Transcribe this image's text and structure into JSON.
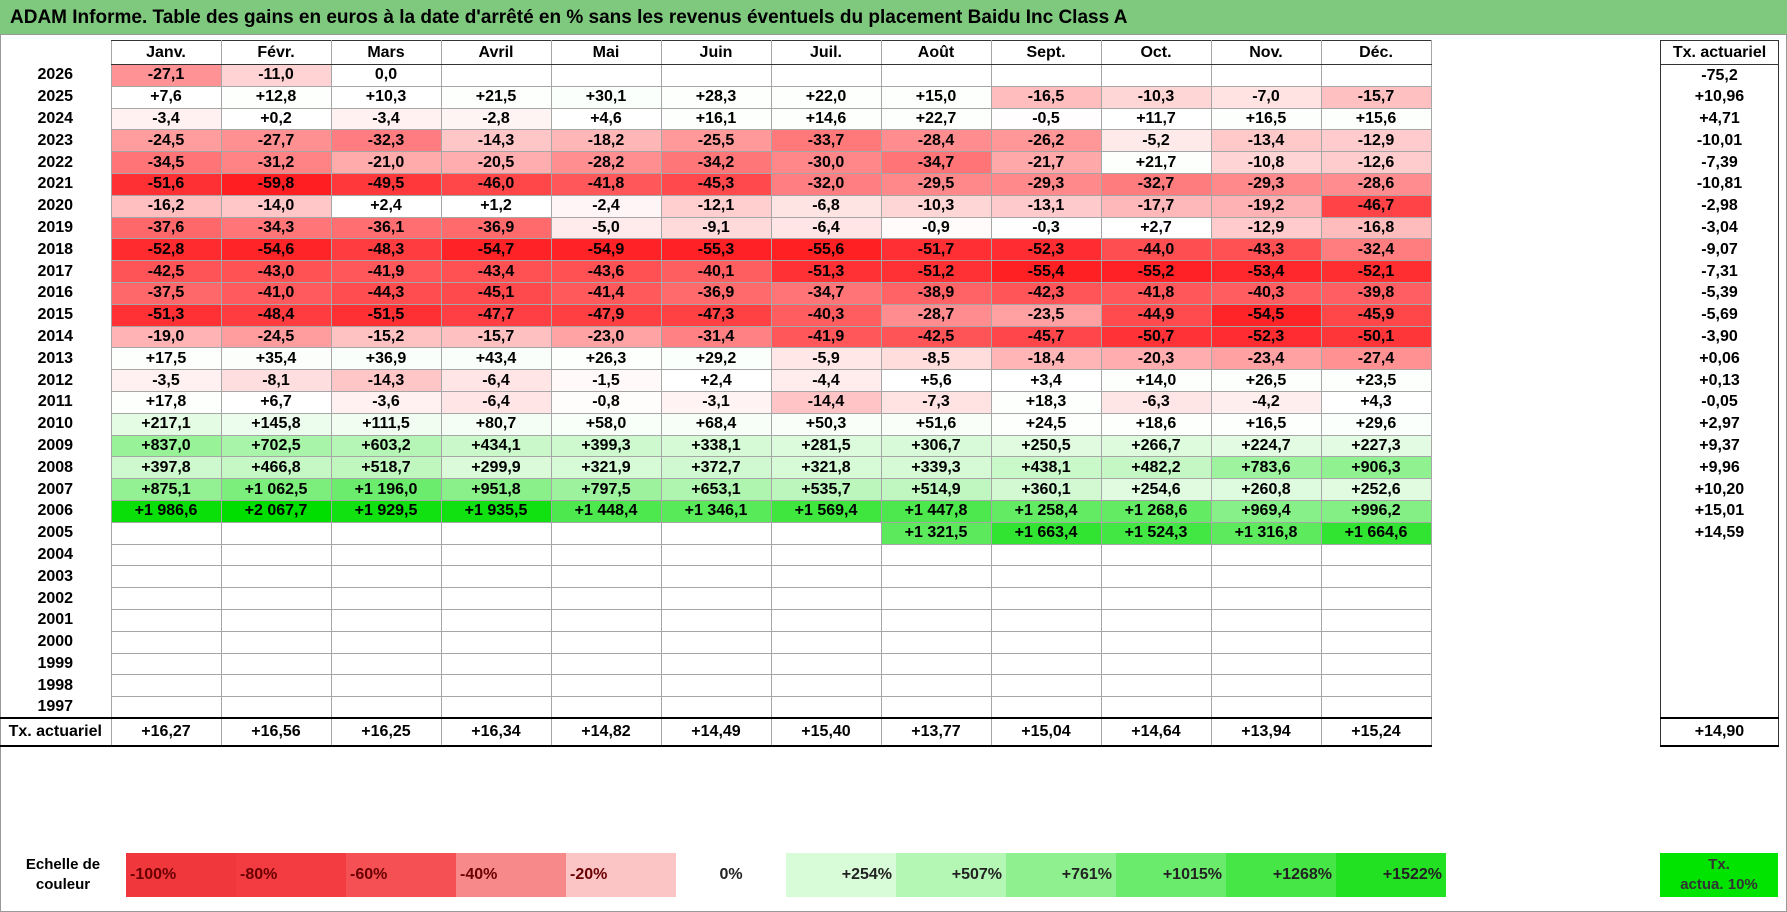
{
  "title": "ADAM Informe. Table des gains en euros à la date d'arrêté en % sans les revenus éventuels du placement Baidu Inc Class A",
  "months": [
    "Janv.",
    "Févr.",
    "Mars",
    "Avril",
    "Mai",
    "Juin",
    "Juil.",
    "Août",
    "Sept.",
    "Oct.",
    "Nov.",
    "Déc."
  ],
  "side_header": "Tx. actuariel",
  "rows": [
    {
      "year": "2026",
      "cells": [
        "-27,1",
        "-11,0",
        "0,0",
        "",
        "",
        "",
        "",
        "",
        "",
        "",
        "",
        ""
      ],
      "rate": "-75,2"
    },
    {
      "year": "2025",
      "cells": [
        "+7,6",
        "+12,8",
        "+10,3",
        "+21,5",
        "+30,1",
        "+28,3",
        "+22,0",
        "+15,0",
        "-16,5",
        "-10,3",
        "-7,0",
        "-15,7"
      ],
      "rate": "+10,96"
    },
    {
      "year": "2024",
      "cells": [
        "-3,4",
        "+0,2",
        "-3,4",
        "-2,8",
        "+4,6",
        "+16,1",
        "+14,6",
        "+22,7",
        "-0,5",
        "+11,7",
        "+16,5",
        "+15,6"
      ],
      "rate": "+4,71"
    },
    {
      "year": "2023",
      "cells": [
        "-24,5",
        "-27,7",
        "-32,3",
        "-14,3",
        "-18,2",
        "-25,5",
        "-33,7",
        "-28,4",
        "-26,2",
        "-5,2",
        "-13,4",
        "-12,9"
      ],
      "rate": "-10,01"
    },
    {
      "year": "2022",
      "cells": [
        "-34,5",
        "-31,2",
        "-21,0",
        "-20,5",
        "-28,2",
        "-34,2",
        "-30,0",
        "-34,7",
        "-21,7",
        "+21,7",
        "-10,8",
        "-12,6"
      ],
      "rate": "-7,39"
    },
    {
      "year": "2021",
      "cells": [
        "-51,6",
        "-59,8",
        "-49,5",
        "-46,0",
        "-41,8",
        "-45,3",
        "-32,0",
        "-29,5",
        "-29,3",
        "-32,7",
        "-29,3",
        "-28,6"
      ],
      "rate": "-10,81"
    },
    {
      "year": "2020",
      "cells": [
        "-16,2",
        "-14,0",
        "+2,4",
        "+1,2",
        "-2,4",
        "-12,1",
        "-6,8",
        "-10,3",
        "-13,1",
        "-17,7",
        "-19,2",
        "-46,7"
      ],
      "rate": "-2,98"
    },
    {
      "year": "2019",
      "cells": [
        "-37,6",
        "-34,3",
        "-36,1",
        "-36,9",
        "-5,0",
        "-9,1",
        "-6,4",
        "-0,9",
        "-0,3",
        "+2,7",
        "-12,9",
        "-16,8"
      ],
      "rate": "-3,04"
    },
    {
      "year": "2018",
      "cells": [
        "-52,8",
        "-54,6",
        "-48,3",
        "-54,7",
        "-54,9",
        "-55,3",
        "-55,6",
        "-51,7",
        "-52,3",
        "-44,0",
        "-43,3",
        "-32,4"
      ],
      "rate": "-9,07"
    },
    {
      "year": "2017",
      "cells": [
        "-42,5",
        "-43,0",
        "-41,9",
        "-43,4",
        "-43,6",
        "-40,1",
        "-51,3",
        "-51,2",
        "-55,4",
        "-55,2",
        "-53,4",
        "-52,1"
      ],
      "rate": "-7,31"
    },
    {
      "year": "2016",
      "cells": [
        "-37,5",
        "-41,0",
        "-44,3",
        "-45,1",
        "-41,4",
        "-36,9",
        "-34,7",
        "-38,9",
        "-42,3",
        "-41,8",
        "-40,3",
        "-39,8"
      ],
      "rate": "-5,39"
    },
    {
      "year": "2015",
      "cells": [
        "-51,3",
        "-48,4",
        "-51,5",
        "-47,7",
        "-47,9",
        "-47,3",
        "-40,3",
        "-28,7",
        "-23,5",
        "-44,9",
        "-54,5",
        "-45,9"
      ],
      "rate": "-5,69"
    },
    {
      "year": "2014",
      "cells": [
        "-19,0",
        "-24,5",
        "-15,2",
        "-15,7",
        "-23,0",
        "-31,4",
        "-41,9",
        "-42,5",
        "-45,7",
        "-50,7",
        "-52,3",
        "-50,1"
      ],
      "rate": "-3,90"
    },
    {
      "year": "2013",
      "cells": [
        "+17,5",
        "+35,4",
        "+36,9",
        "+43,4",
        "+26,3",
        "+29,2",
        "-5,9",
        "-8,5",
        "-18,4",
        "-20,3",
        "-23,4",
        "-27,4"
      ],
      "rate": "+0,06"
    },
    {
      "year": "2012",
      "cells": [
        "-3,5",
        "-8,1",
        "-14,3",
        "-6,4",
        "-1,5",
        "+2,4",
        "-4,4",
        "+5,6",
        "+3,4",
        "+14,0",
        "+26,5",
        "+23,5"
      ],
      "rate": "+0,13"
    },
    {
      "year": "2011",
      "cells": [
        "+17,8",
        "+6,7",
        "-3,6",
        "-6,4",
        "-0,8",
        "-3,1",
        "-14,4",
        "-7,3",
        "+18,3",
        "-6,3",
        "-4,2",
        "+4,3"
      ],
      "rate": "-0,05"
    },
    {
      "year": "2010",
      "cells": [
        "+217,1",
        "+145,8",
        "+111,5",
        "+80,7",
        "+58,0",
        "+68,4",
        "+50,3",
        "+51,6",
        "+24,5",
        "+18,6",
        "+16,5",
        "+29,6"
      ],
      "rate": "+2,97"
    },
    {
      "year": "2009",
      "cells": [
        "+837,0",
        "+702,5",
        "+603,2",
        "+434,1",
        "+399,3",
        "+338,1",
        "+281,5",
        "+306,7",
        "+250,5",
        "+266,7",
        "+224,7",
        "+227,3"
      ],
      "rate": "+9,37"
    },
    {
      "year": "2008",
      "cells": [
        "+397,8",
        "+466,8",
        "+518,7",
        "+299,9",
        "+321,9",
        "+372,7",
        "+321,8",
        "+339,3",
        "+438,1",
        "+482,2",
        "+783,6",
        "+906,3"
      ],
      "rate": "+9,96"
    },
    {
      "year": "2007",
      "cells": [
        "+875,1",
        "+1 062,5",
        "+1 196,0",
        "+951,8",
        "+797,5",
        "+653,1",
        "+535,7",
        "+514,9",
        "+360,1",
        "+254,6",
        "+260,8",
        "+252,6"
      ],
      "rate": "+10,20"
    },
    {
      "year": "2006",
      "cells": [
        "+1 986,6",
        "+2 067,7",
        "+1 929,5",
        "+1 935,5",
        "+1 448,4",
        "+1 346,1",
        "+1 569,4",
        "+1 447,8",
        "+1 258,4",
        "+1 268,6",
        "+969,4",
        "+996,2"
      ],
      "rate": "+15,01"
    },
    {
      "year": "2005",
      "cells": [
        "",
        "",
        "",
        "",
        "",
        "",
        "",
        "+1 321,5",
        "+1 663,4",
        "+1 524,3",
        "+1 316,8",
        "+1 664,6"
      ],
      "rate": "+14,59"
    },
    {
      "year": "2004",
      "cells": [
        "",
        "",
        "",
        "",
        "",
        "",
        "",
        "",
        "",
        "",
        "",
        ""
      ],
      "rate": ""
    },
    {
      "year": "2003",
      "cells": [
        "",
        "",
        "",
        "",
        "",
        "",
        "",
        "",
        "",
        "",
        "",
        ""
      ],
      "rate": ""
    },
    {
      "year": "2002",
      "cells": [
        "",
        "",
        "",
        "",
        "",
        "",
        "",
        "",
        "",
        "",
        "",
        ""
      ],
      "rate": ""
    },
    {
      "year": "2001",
      "cells": [
        "",
        "",
        "",
        "",
        "",
        "",
        "",
        "",
        "",
        "",
        "",
        ""
      ],
      "rate": ""
    },
    {
      "year": "2000",
      "cells": [
        "",
        "",
        "",
        "",
        "",
        "",
        "",
        "",
        "",
        "",
        "",
        ""
      ],
      "rate": ""
    },
    {
      "year": "1999",
      "cells": [
        "",
        "",
        "",
        "",
        "",
        "",
        "",
        "",
        "",
        "",
        "",
        ""
      ],
      "rate": ""
    },
    {
      "year": "1998",
      "cells": [
        "",
        "",
        "",
        "",
        "",
        "",
        "",
        "",
        "",
        "",
        "",
        ""
      ],
      "rate": ""
    },
    {
      "year": "1997",
      "cells": [
        "",
        "",
        "",
        "",
        "",
        "",
        "",
        "",
        "",
        "",
        "",
        ""
      ],
      "rate": ""
    }
  ],
  "total_row": {
    "label": "Tx. actuariel",
    "cells": [
      "+16,27",
      "+16,56",
      "+16,25",
      "+16,34",
      "+14,82",
      "+14,49",
      "+15,40",
      "+13,77",
      "+15,04",
      "+14,64",
      "+13,94",
      "+15,24"
    ],
    "rate": "+14,90"
  },
  "legend": {
    "label_line1": "Echelle de",
    "label_line2": "couleur",
    "swatches": [
      {
        "text": "-100%",
        "color": "#f0373c",
        "align": "left"
      },
      {
        "text": "-80%",
        "color": "#f23c41",
        "align": "left"
      },
      {
        "text": "-60%",
        "color": "#f55054",
        "align": "left"
      },
      {
        "text": "-40%",
        "color": "#f8898b",
        "align": "left"
      },
      {
        "text": "-20%",
        "color": "#fbc4c5",
        "align": "left"
      },
      {
        "text": "0%",
        "color": "#ffffff",
        "align": "center"
      },
      {
        "text": "+254%",
        "color": "#d8fbd8",
        "align": "right"
      },
      {
        "text": "+507%",
        "color": "#b4f6b4",
        "align": "right"
      },
      {
        "text": "+761%",
        "color": "#8ff08f",
        "align": "right"
      },
      {
        "text": "+1015%",
        "color": "#6beb6b",
        "align": "right"
      },
      {
        "text": "+1268%",
        "color": "#46e646",
        "align": "right"
      },
      {
        "text": "+1522%",
        "color": "#22e022",
        "align": "right"
      }
    ],
    "actua_line1": "Tx.",
    "actua_line2": "actua. 10%"
  }
}
